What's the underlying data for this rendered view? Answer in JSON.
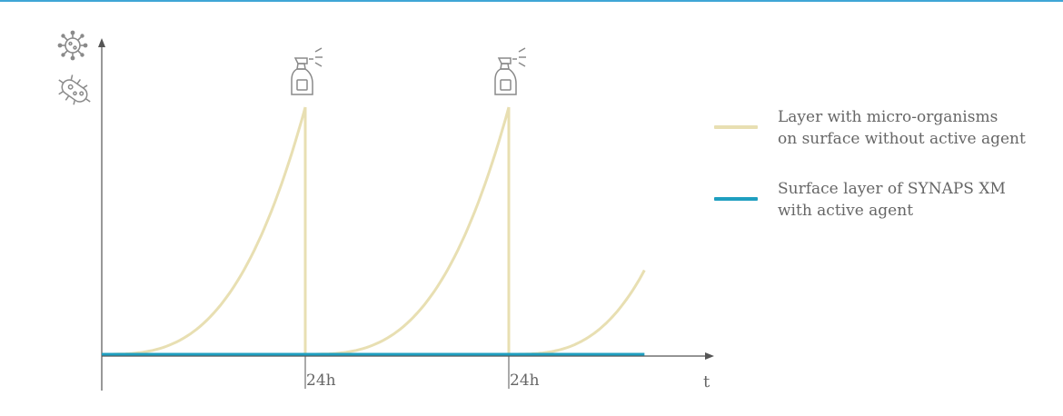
{
  "colors": {
    "top_rule": "#3fa6d6",
    "axis": "#555555",
    "microorganism_curve": "#e8dfb2",
    "synaps_line": "#1f9fc0",
    "icon": "#8a8a8a"
  },
  "icons": {
    "y_axis_top": "virus-icon",
    "y_axis_bottom": "bacteria-icon",
    "spray_1": "spray-bottle-icon",
    "spray_2": "spray-bottle-icon"
  },
  "legend": {
    "items": [
      {
        "line1": "Layer with micro-organisms",
        "line2": "on surface without active agent",
        "color": "#e8dfb2"
      },
      {
        "line1": "Surface layer of SYNAPS XM",
        "line2": "with active agent",
        "color": "#1f9fc0"
      }
    ]
  },
  "chart_data": {
    "type": "line",
    "xlabel": "t",
    "x_tick_labels": [
      "24h",
      "24h"
    ],
    "x_ticks": [
      24,
      48
    ],
    "xlim": [
      0,
      72
    ],
    "ylim": [
      0,
      1
    ],
    "grid": false,
    "legend_position": "right",
    "spray_events_at": [
      24,
      48
    ],
    "series": [
      {
        "name": "Layer with micro-organisms on surface without active agent",
        "color": "#e8dfb2",
        "points": [
          [
            0,
            0
          ],
          [
            4,
            0.012
          ],
          [
            8,
            0.06
          ],
          [
            12,
            0.16
          ],
          [
            16,
            0.34
          ],
          [
            20,
            0.6
          ],
          [
            24,
            1.0
          ],
          [
            24,
            0
          ],
          [
            28,
            0.012
          ],
          [
            32,
            0.06
          ],
          [
            36,
            0.16
          ],
          [
            40,
            0.34
          ],
          [
            44,
            0.6
          ],
          [
            48,
            1.0
          ],
          [
            48,
            0
          ],
          [
            52,
            0.012
          ],
          [
            56,
            0.06
          ],
          [
            60,
            0.16
          ],
          [
            64,
            0.34
          ]
        ]
      },
      {
        "name": "Surface layer of SYNAPS XM with active agent",
        "color": "#1f9fc0",
        "points": [
          [
            0,
            0
          ],
          [
            64,
            0
          ]
        ]
      }
    ]
  }
}
